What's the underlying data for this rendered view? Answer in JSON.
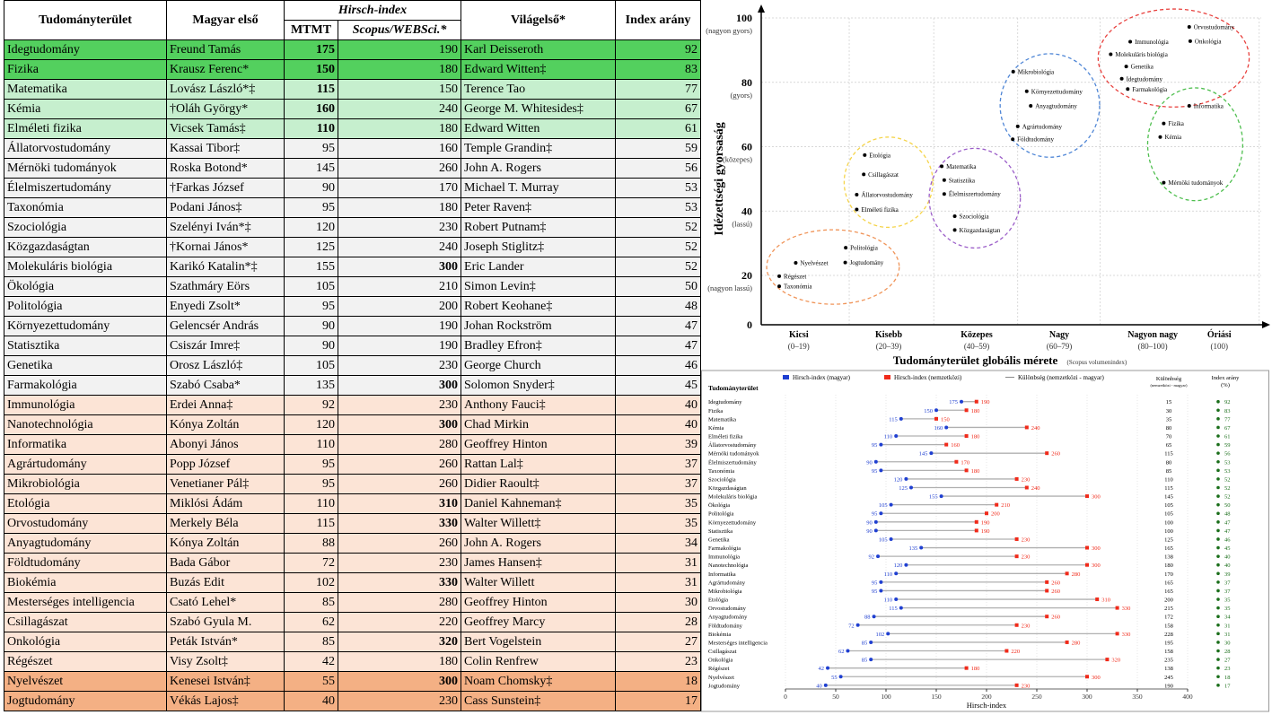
{
  "table": {
    "headers": {
      "field": "Tudományterület",
      "hungarian_first": "Magyar első",
      "hirsch_group": "Hirsch-index",
      "mtmt": "MTMT",
      "scopus": "Scopus/WEBSci.*",
      "world_first": "Világelső*",
      "ratio": "Index arány"
    },
    "rows": [
      {
        "field": "Idegtudomány",
        "hu": "Freund Tamás",
        "mtmt": 175,
        "scopus": 190,
        "world": "Karl Deisseroth",
        "ratio": 92,
        "band": "dg",
        "mb": true,
        "sb": false
      },
      {
        "field": "Fizika",
        "hu": "Krausz Ferenc*",
        "mtmt": 150,
        "scopus": 180,
        "world": "Edward Witten‡",
        "ratio": 83,
        "band": "dg",
        "mb": true,
        "sb": false
      },
      {
        "field": "Matematika",
        "hu": "Lovász László*‡",
        "mtmt": 115,
        "scopus": 150,
        "world": "Terence Tao",
        "ratio": 77,
        "band": "lg",
        "mb": true,
        "sb": false
      },
      {
        "field": "Kémia",
        "hu": "†Oláh György*",
        "mtmt": 160,
        "scopus": 240,
        "world": "George M. Whitesides‡",
        "ratio": 67,
        "band": "lg",
        "mb": true,
        "sb": false
      },
      {
        "field": "Elméleti fizika",
        "hu": "Vicsek Tamás‡",
        "mtmt": 110,
        "scopus": 180,
        "world": "Edward Witten",
        "ratio": 61,
        "band": "lg",
        "mb": true,
        "sb": false
      },
      {
        "field": "Állatorvostudomány",
        "hu": "Kassai Tibor‡",
        "mtmt": 95,
        "scopus": 160,
        "world": "Temple Grandin‡",
        "ratio": 59,
        "band": "gy",
        "mb": false,
        "sb": false
      },
      {
        "field": "Mérnöki tudományok",
        "hu": "Roska Botond*",
        "mtmt": 145,
        "scopus": 260,
        "world": "John A. Rogers",
        "ratio": 56,
        "band": "gy",
        "mb": false,
        "sb": false
      },
      {
        "field": "Élelmiszertudomány",
        "hu": "†Farkas József",
        "mtmt": 90,
        "scopus": 170,
        "world": "Michael T. Murray",
        "ratio": 53,
        "band": "gy",
        "mb": false,
        "sb": false
      },
      {
        "field": "Taxonómia",
        "hu": "Podani János‡",
        "mtmt": 95,
        "scopus": 180,
        "world": "Peter Raven‡",
        "ratio": 53,
        "band": "gy",
        "mb": false,
        "sb": false
      },
      {
        "field": "Szociológia",
        "hu": "Szelényi Iván*‡",
        "mtmt": 120,
        "scopus": 230,
        "world": "Robert Putnam‡",
        "ratio": 52,
        "band": "gy",
        "mb": false,
        "sb": false
      },
      {
        "field": "Közgazdaságtan",
        "hu": "†Kornai János*",
        "mtmt": 125,
        "scopus": 240,
        "world": "Joseph Stiglitz‡",
        "ratio": 52,
        "band": "gy",
        "mb": false,
        "sb": false
      },
      {
        "field": "Molekuláris biológia",
        "hu": "Karikó Katalin*‡",
        "mtmt": 155,
        "scopus": 300,
        "world": "Eric Lander",
        "ratio": 52,
        "band": "gy",
        "mb": false,
        "sb": true
      },
      {
        "field": "Ökológia",
        "hu": "Szathmáry Eörs",
        "mtmt": 105,
        "scopus": 210,
        "world": "Simon Levin‡",
        "ratio": 50,
        "band": "gy",
        "mb": false,
        "sb": false
      },
      {
        "field": "Politológia",
        "hu": "Enyedi Zsolt*",
        "mtmt": 95,
        "scopus": 200,
        "world": "Robert Keohane‡",
        "ratio": 48,
        "band": "gy",
        "mb": false,
        "sb": false
      },
      {
        "field": "Környezettudomány",
        "hu": "Gelencsér András",
        "mtmt": 90,
        "scopus": 190,
        "world": "Johan Rockström",
        "ratio": 47,
        "band": "gy",
        "mb": false,
        "sb": false
      },
      {
        "field": "Statisztika",
        "hu": "Csiszár Imre‡",
        "mtmt": 90,
        "scopus": 190,
        "world": "Bradley Efron‡",
        "ratio": 47,
        "band": "gy",
        "mb": false,
        "sb": false
      },
      {
        "field": "Genetika",
        "hu": "Orosz László‡",
        "mtmt": 105,
        "scopus": 230,
        "world": "George Church",
        "ratio": 46,
        "band": "gy",
        "mb": false,
        "sb": false
      },
      {
        "field": "Farmakológia",
        "hu": "Szabó Csaba*",
        "mtmt": 135,
        "scopus": 300,
        "world": "Solomon Snyder‡",
        "ratio": 45,
        "band": "gy",
        "mb": false,
        "sb": true
      },
      {
        "field": "Immunológia",
        "hu": "Erdei Anna‡",
        "mtmt": 92,
        "scopus": 230,
        "world": "Anthony Fauci‡",
        "ratio": 40,
        "band": "pe",
        "mb": false,
        "sb": false
      },
      {
        "field": "Nanotechnológia",
        "hu": "Kónya Zoltán",
        "mtmt": 120,
        "scopus": 300,
        "world": "Chad Mirkin",
        "ratio": 40,
        "band": "pe",
        "mb": false,
        "sb": true
      },
      {
        "field": "Informatika",
        "hu": "Abonyi János",
        "mtmt": 110,
        "scopus": 280,
        "world": "Geoffrey Hinton",
        "ratio": 39,
        "band": "pe",
        "mb": false,
        "sb": false
      },
      {
        "field": "Agrártudomány",
        "hu": "Popp József",
        "mtmt": 95,
        "scopus": 260,
        "world": "Rattan Lal‡",
        "ratio": 37,
        "band": "pe",
        "mb": false,
        "sb": false
      },
      {
        "field": "Mikrobiológia",
        "hu": "Venetianer Pál‡",
        "mtmt": 95,
        "scopus": 260,
        "world": "Didier Raoult‡",
        "ratio": 37,
        "band": "pe",
        "mb": false,
        "sb": false
      },
      {
        "field": "Etológia",
        "hu": "Miklósi Ádám",
        "mtmt": 110,
        "scopus": 310,
        "world": "Daniel Kahneman‡",
        "ratio": 35,
        "band": "pe",
        "mb": false,
        "sb": true
      },
      {
        "field": "Orvostudomány",
        "hu": "Merkely Béla",
        "mtmt": 115,
        "scopus": 330,
        "world": "Walter Willett‡",
        "ratio": 35,
        "band": "pe",
        "mb": false,
        "sb": true
      },
      {
        "field": "Anyagtudomány",
        "hu": "Kónya Zoltán",
        "mtmt": 88,
        "scopus": 260,
        "world": "John A. Rogers",
        "ratio": 34,
        "band": "pe",
        "mb": false,
        "sb": false
      },
      {
        "field": "Földtudomány",
        "hu": "Bada Gábor",
        "mtmt": 72,
        "scopus": 230,
        "world": "James Hansen‡",
        "ratio": 31,
        "band": "pe",
        "mb": false,
        "sb": false
      },
      {
        "field": "Biokémia",
        "hu": "Buzás Edit",
        "mtmt": 102,
        "scopus": 330,
        "world": "Walter Willett",
        "ratio": 31,
        "band": "pe",
        "mb": false,
        "sb": true
      },
      {
        "field": "Mesterséges intelligencia",
        "hu": "Csató Lehel*",
        "mtmt": 85,
        "scopus": 280,
        "world": "Geoffrey Hinton",
        "ratio": 30,
        "band": "pe",
        "mb": false,
        "sb": false
      },
      {
        "field": "Csillagászat",
        "hu": "Szabó Gyula M.",
        "mtmt": 62,
        "scopus": 220,
        "world": "Geoffrey Marcy",
        "ratio": 28,
        "band": "pe",
        "mb": false,
        "sb": false
      },
      {
        "field": "Onkológia",
        "hu": "Peták István*",
        "mtmt": 85,
        "scopus": 320,
        "world": "Bert Vogelstein",
        "ratio": 27,
        "band": "pe",
        "mb": false,
        "sb": true
      },
      {
        "field": "Régészet",
        "hu": "Visy Zsolt‡",
        "mtmt": 42,
        "scopus": 180,
        "world": "Colin Renfrew",
        "ratio": 23,
        "band": "pe",
        "mb": false,
        "sb": false
      },
      {
        "field": "Nyelvészet",
        "hu": "Kenesei István‡",
        "mtmt": 55,
        "scopus": 300,
        "world": "Noam Chomsky‡",
        "ratio": 18,
        "band": "or",
        "mb": false,
        "sb": true
      },
      {
        "field": "Jogtudomány",
        "hu": "Vékás Lajos‡",
        "mtmt": 40,
        "scopus": 230,
        "world": "Cass Sunstein‡",
        "ratio": 17,
        "band": "or",
        "mb": false,
        "sb": false
      }
    ]
  },
  "chart_data": [
    {
      "type": "scatter",
      "xlabel": "Tudományterület globális mérete",
      "xlabel_note": "(Scopus volumenindex)",
      "ylabel": "Idézettségi gyorsaság",
      "ylim": [
        0,
        100
      ],
      "xlim": [
        0,
        100
      ],
      "grid": true,
      "yticks": [
        {
          "value": 100,
          "label": "100",
          "sub": "(nagyon gyors)"
        },
        {
          "value": 80,
          "label": "80",
          "sub": "(gyors)"
        },
        {
          "value": 60,
          "label": "60",
          "sub": "(közepes)"
        },
        {
          "value": 40,
          "label": "40",
          "sub": "(lassú)"
        },
        {
          "value": 20,
          "label": "20",
          "sub": "(nagyon lassú)"
        },
        {
          "value": 0,
          "label": "0",
          "sub": ""
        }
      ],
      "xcategories": [
        {
          "x": 7.5,
          "label": "Kicsi",
          "range": "(0–19)"
        },
        {
          "x": 25.5,
          "label": "Kisebb",
          "range": "(20–39)"
        },
        {
          "x": 43.1,
          "label": "Közepes",
          "range": "(40–59)"
        },
        {
          "x": 59.6,
          "label": "Nagy",
          "range": "(60–79)"
        },
        {
          "x": 78.3,
          "label": "Nagyon nagy",
          "range": "(80–100)"
        },
        {
          "x": 91.6,
          "label": "Óriási",
          "range": "(100)"
        }
      ],
      "xgrid": [
        17.6,
        34.5,
        51.3,
        67.8,
        99.6
      ],
      "clusters": [
        {
          "color": "#f0955a",
          "points": [
            {
              "name": "Nyelvészet",
              "x": 6.9,
              "y": 23.9
            },
            {
              "name": "Régészet",
              "x": 3.6,
              "y": 19.7
            },
            {
              "name": "Taxonómia",
              "x": 3.6,
              "y": 15.6
            },
            {
              "name": "Politológia",
              "x": 16.9,
              "y": 28.6
            },
            {
              "name": "Jogtudomány",
              "x": 16.8,
              "y": 24.0
            }
          ]
        },
        {
          "color": "#f5d44a",
          "points": [
            {
              "name": "Etológia",
              "x": 20.7,
              "y": 57.4
            },
            {
              "name": "Csillagászat",
              "x": 20.5,
              "y": 51.4
            },
            {
              "name": "Állatorvostudomány",
              "x": 19.1,
              "y": 45.1
            },
            {
              "name": "Elméleti fizika",
              "x": 19.1,
              "y": 40.5
            }
          ]
        },
        {
          "color": "#9c5fc9",
          "points": [
            {
              "name": "Matematika",
              "x": 36.1,
              "y": 53.9
            },
            {
              "name": "Statisztika",
              "x": 36.6,
              "y": 49.6
            },
            {
              "name": "Élelmiszertudomány",
              "x": 36.6,
              "y": 45.3
            },
            {
              "name": "Szociológia",
              "x": 38.7,
              "y": 38.4
            },
            {
              "name": "Közgazdaságtan",
              "x": 38.7,
              "y": 34.1
            }
          ]
        },
        {
          "color": "#4f86d6",
          "points": [
            {
              "name": "Mikrobiológia",
              "x": 50.4,
              "y": 83.3
            },
            {
              "name": "Környezettudomány",
              "x": 53.1,
              "y": 77.2
            },
            {
              "name": "Anyagtudomány",
              "x": 53.9,
              "y": 72.7
            },
            {
              "name": "Agrártudomány",
              "x": 51.3,
              "y": 66.3
            },
            {
              "name": "Földtudomány",
              "x": 50.3,
              "y": 62.3
            }
          ]
        },
        {
          "color": "#e8403d",
          "points": [
            {
              "name": "Orvostudomány",
              "x": 85.6,
              "y": 97.2
            },
            {
              "name": "Onkológia",
              "x": 85.8,
              "y": 92.8
            },
            {
              "name": "Immunológia",
              "x": 73.8,
              "y": 92.6
            },
            {
              "name": "Molekuláris biológia",
              "x": 69.9,
              "y": 88.7
            },
            {
              "name": "Genetika",
              "x": 73.0,
              "y": 84.9
            },
            {
              "name": "Idegtudomány",
              "x": 72.1,
              "y": 81.1
            },
            {
              "name": "Farmakológia",
              "x": 73.3,
              "y": 77.9
            }
          ]
        },
        {
          "color": "#4fbf4f",
          "points": [
            {
              "name": "Informatika",
              "x": 85.6,
              "y": 72.7
            },
            {
              "name": "Fizika",
              "x": 80.5,
              "y": 67.2
            },
            {
              "name": "Kémia",
              "x": 79.8,
              "y": 63.0
            },
            {
              "name": "Mérnöki tudományok",
              "x": 80.5,
              "y": 48.8
            }
          ]
        }
      ]
    },
    {
      "type": "dumbbell",
      "row_header": "Tudományterület",
      "xlabel": "Hirsch-index",
      "xlim": [
        0,
        400
      ],
      "xticks": [
        0,
        50,
        100,
        150,
        200,
        250,
        300,
        350,
        400
      ],
      "legend": {
        "hu": "Hirsch-index (magyar)",
        "intl": "Hirsch-index (nemzetközi)",
        "diff": "Különbség (nemzetközi - magyar)"
      },
      "diff_header": "Különbség",
      "diff_sub": "(nemzetközi - magyar)",
      "ratio_header": "Index arány",
      "ratio_sub": "(%)",
      "colors": {
        "hu": "#1f3fd1",
        "intl": "#f02a1a",
        "line": "#b0b0b0",
        "ratio": "#1a6e1a"
      },
      "categories": [
        "Idegtudomány",
        "Fizika",
        "Matematika",
        "Kémia",
        "Elméleti fizika",
        "Állatorvostudomány",
        "Mérnöki tudományok",
        "Élelmiszertudomány",
        "Taxonómia",
        "Szociológia",
        "Közgazdaságtan",
        "Molekuláris biológia",
        "Ökológia",
        "Politológia",
        "Környezettudomány",
        "Statisztika",
        "Genetika",
        "Farmakológia",
        "Immunológia",
        "Nanotechnológia",
        "Informatika",
        "Agrártudomány",
        "Mikrobiológia",
        "Etológia",
        "Orvostudomány",
        "Anyagtudomány",
        "Földtudomány",
        "Biokémia",
        "Mesterséges intelligencia",
        "Csillagászat",
        "Onkológia",
        "Régészet",
        "Nyelvészet",
        "Jogtudomány"
      ],
      "series": [
        {
          "name": "Hirsch-index (magyar)",
          "values": [
            175,
            150,
            115,
            160,
            110,
            95,
            145,
            90,
            95,
            120,
            125,
            155,
            105,
            95,
            90,
            90,
            105,
            135,
            92,
            120,
            110,
            95,
            95,
            110,
            115,
            88,
            72,
            102,
            85,
            62,
            85,
            42,
            55,
            40
          ]
        },
        {
          "name": "Hirsch-index (nemzetközi)",
          "values": [
            190,
            180,
            150,
            240,
            180,
            160,
            260,
            170,
            180,
            230,
            240,
            300,
            210,
            200,
            190,
            190,
            230,
            300,
            230,
            300,
            280,
            260,
            260,
            310,
            330,
            260,
            230,
            330,
            280,
            220,
            320,
            180,
            300,
            230
          ]
        },
        {
          "name": "Különbség",
          "values": [
            15,
            30,
            35,
            80,
            70,
            65,
            115,
            80,
            85,
            110,
            115,
            145,
            105,
            105,
            100,
            100,
            125,
            165,
            138,
            180,
            170,
            165,
            165,
            200,
            215,
            172,
            158,
            228,
            195,
            158,
            235,
            138,
            245,
            190
          ]
        },
        {
          "name": "Index arány (%)",
          "values": [
            92,
            83,
            77,
            67,
            61,
            59,
            56,
            53,
            53,
            52,
            52,
            52,
            50,
            48,
            47,
            47,
            46,
            45,
            40,
            40,
            39,
            37,
            37,
            35,
            35,
            34,
            31,
            31,
            30,
            28,
            27,
            23,
            18,
            17
          ]
        }
      ]
    }
  ]
}
